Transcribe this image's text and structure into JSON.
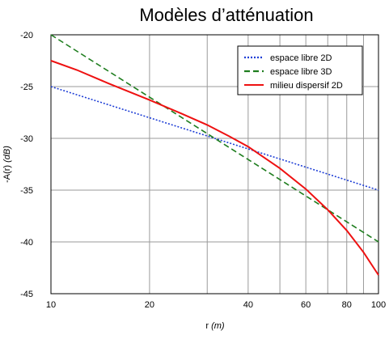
{
  "chart_data": {
    "type": "line",
    "title": "Modèles d’atténuation",
    "ylabel": {
      "main": "-A(r) ",
      "unit": "(dB)"
    },
    "xlabel": {
      "main": "r ",
      "unit": "(m)"
    },
    "x_scale": "log",
    "xlim": [
      10,
      100
    ],
    "ylim": [
      -45,
      -20
    ],
    "x_ticks": [
      10,
      20,
      40,
      60,
      80,
      100
    ],
    "x_tick_labels": [
      "10",
      "20",
      "40",
      "60",
      "80",
      "100"
    ],
    "x_grid": [
      10,
      20,
      30,
      40,
      50,
      60,
      70,
      80,
      90,
      100
    ],
    "y_ticks": [
      -20,
      -25,
      -30,
      -35,
      -40,
      -45
    ],
    "y_tick_labels": [
      "-20",
      "-25",
      "-30",
      "-35",
      "-40",
      "-45"
    ],
    "grid": true,
    "legend_position": "top-right",
    "series": [
      {
        "name": "espace libre 2D",
        "color": "#1f3fd6",
        "dash": "dotted",
        "x": [
          10,
          100
        ],
        "y": [
          -25,
          -35
        ]
      },
      {
        "name": "espace libre 3D",
        "color": "#1e7d1e",
        "dash": "dashed",
        "x": [
          10,
          100
        ],
        "y": [
          -20,
          -40
        ]
      },
      {
        "name": "milieu dispersif 2D",
        "color": "#ee1111",
        "dash": "solid",
        "x": [
          10,
          12,
          15,
          20,
          25,
          30,
          35,
          40,
          50,
          60,
          70,
          80,
          90,
          100
        ],
        "y": [
          -22.5,
          -23.4,
          -24.7,
          -26.3,
          -27.6,
          -28.7,
          -29.8,
          -30.8,
          -32.9,
          -34.9,
          -36.9,
          -38.9,
          -41.0,
          -43.2
        ]
      }
    ]
  }
}
